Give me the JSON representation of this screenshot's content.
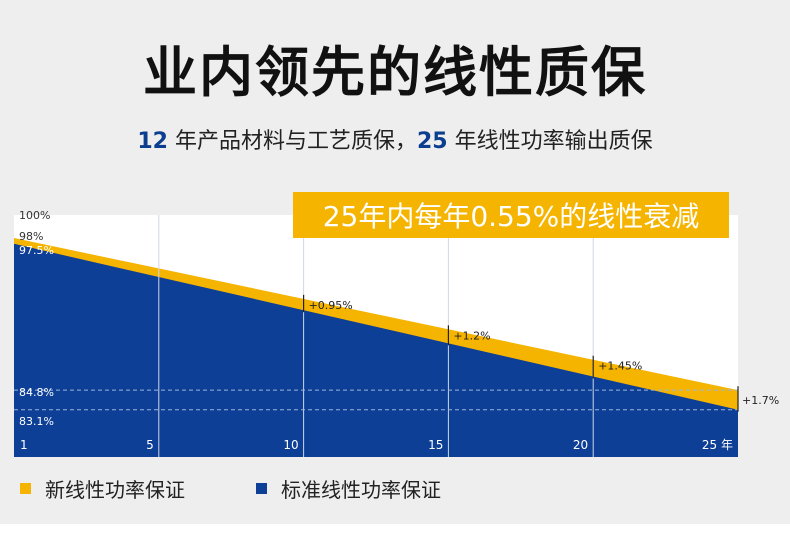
{
  "header": {
    "title": "业内领先的线性质保",
    "subtitle": {
      "num1": "12",
      "text1": " 年产品材料与工艺质保，",
      "num2": "25",
      "text2": " 年线性功率输出质保"
    }
  },
  "banner": {
    "text": "25年内每年0.55%的线性衰减"
  },
  "colors": {
    "yellow": "#f5b400",
    "blue": "#0d3f97",
    "title_dark": "#111111",
    "accent_blue": "#0c3e8f"
  },
  "chart_data": {
    "type": "area",
    "x": [
      1,
      5,
      10,
      15,
      20,
      25
    ],
    "x_tick_labels": [
      "1",
      "5",
      "10",
      "15",
      "20",
      "25 年"
    ],
    "ylim": [
      79,
      100
    ],
    "y_tick_labels": [
      {
        "value": 100,
        "label": "100%"
      },
      {
        "value": 98,
        "label": "98%"
      },
      {
        "value": 97.5,
        "label": "97.5%"
      },
      {
        "value": 84.8,
        "label": "84.8%"
      },
      {
        "value": 83.1,
        "label": "83.1%"
      }
    ],
    "series": [
      {
        "name": "新线性功率保证",
        "color": "#f5b400",
        "start": 98,
        "end": 84.8
      },
      {
        "name": "标准线性功率保证",
        "color": "#0d3f97",
        "start": 97.5,
        "end": 83.1
      }
    ],
    "annotations": [
      {
        "x": 10,
        "label": "+0.95%"
      },
      {
        "x": 15,
        "label": "+1.2%"
      },
      {
        "x": 20,
        "label": "+1.45%"
      },
      {
        "x": 25,
        "label": "+1.7%"
      }
    ],
    "dashed_lines": [
      84.8,
      83.1
    ],
    "grid": true
  },
  "legend": {
    "items": [
      {
        "label": "新线性功率保证",
        "color": "#f5b400"
      },
      {
        "label": "标准线性功率保证",
        "color": "#0d3f97"
      }
    ]
  }
}
